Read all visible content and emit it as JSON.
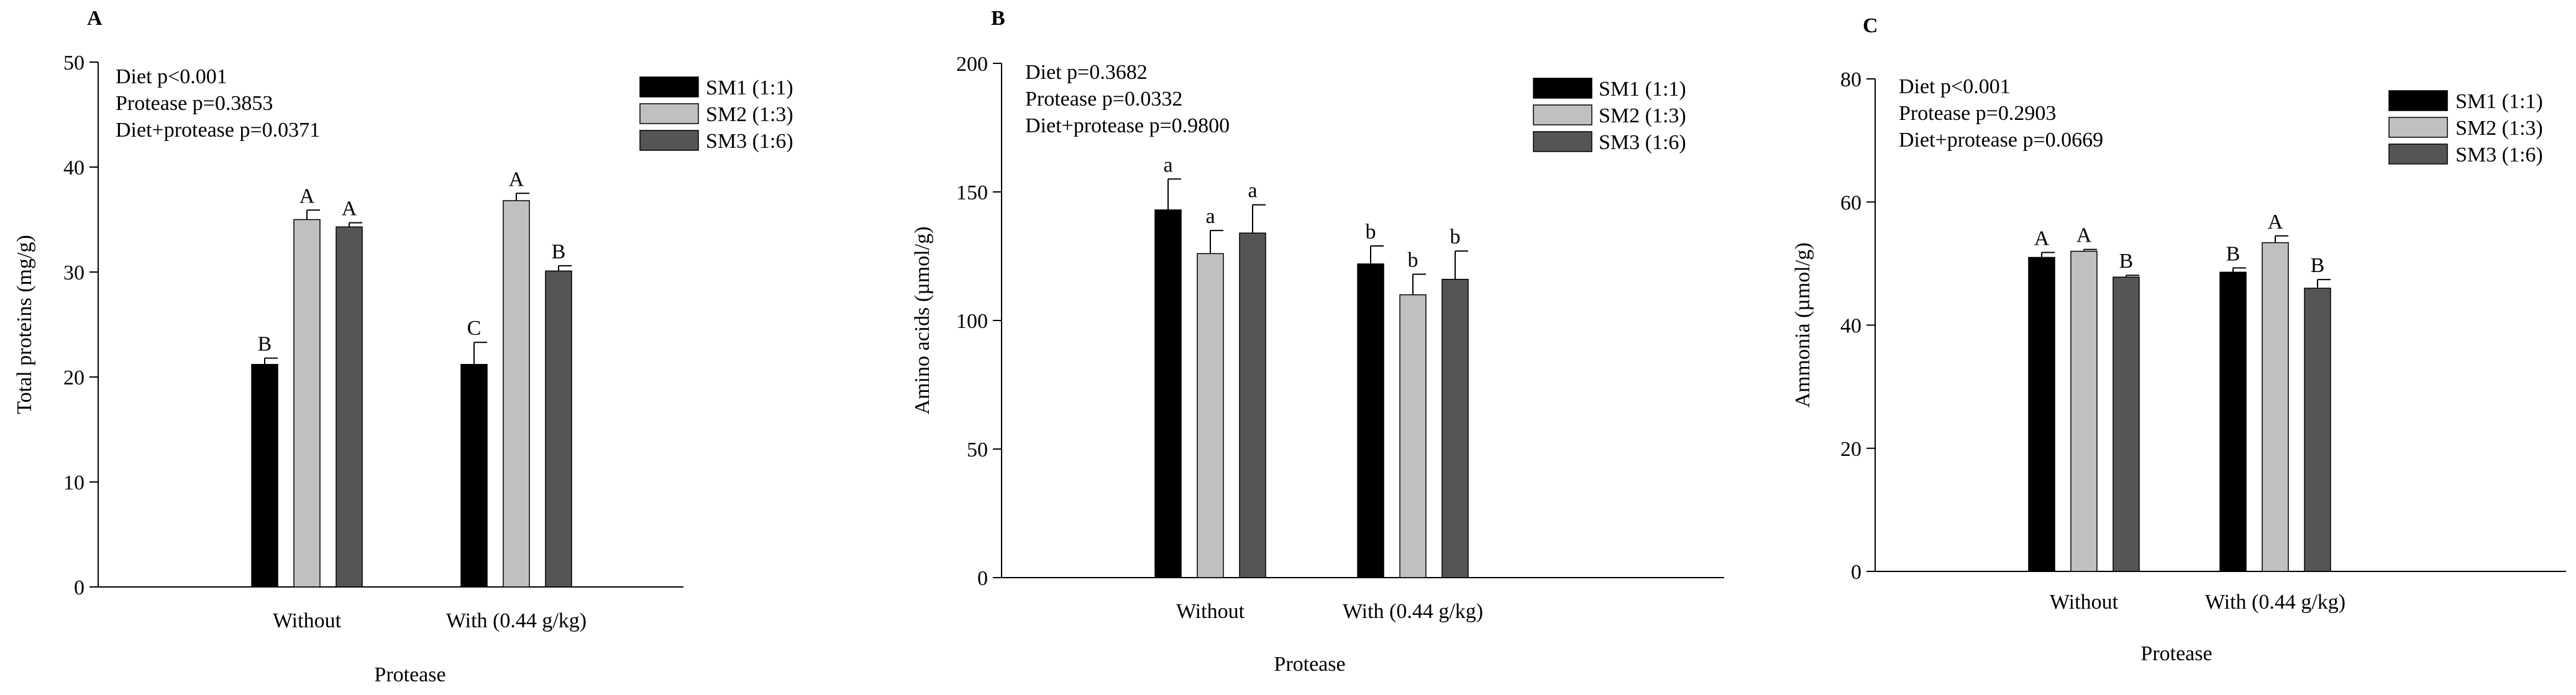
{
  "chart_data": [
    {
      "type": "bar",
      "panel": "A",
      "title": "",
      "xlabel": "Protease",
      "ylabel": "Total proteins (mg/g)",
      "categories": [
        "Without",
        "With (0.44 g/kg)"
      ],
      "ylim": [
        0,
        50
      ],
      "yticks": [
        0,
        10,
        20,
        30,
        40,
        50
      ],
      "grid": false,
      "legend_position": "top-right",
      "stats_text": [
        "Diet p<0.001",
        "Protease p=0.3853",
        "Diet+protease p=0.0371"
      ],
      "series": [
        {
          "name": "SM1 (1:1)",
          "color": "#000000",
          "values": [
            21.2,
            21.2
          ],
          "errors": [
            0.6,
            2.1
          ],
          "letters": [
            "B",
            "C"
          ]
        },
        {
          "name": "SM2 (1:3)",
          "color": "#c0c0c0",
          "values": [
            35.0,
            36.8
          ],
          "errors": [
            0.9,
            0.7
          ],
          "letters": [
            "A",
            "A"
          ]
        },
        {
          "name": "SM3 (1:6)",
          "color": "#555555",
          "values": [
            34.3,
            30.1
          ],
          "errors": [
            0.4,
            0.5
          ],
          "letters": [
            "A",
            "B"
          ]
        }
      ]
    },
    {
      "type": "bar",
      "panel": "B",
      "title": "",
      "xlabel": "Protease",
      "ylabel": "Amino acids (µmol/g)",
      "categories": [
        "Without",
        "With (0.44 g/kg)"
      ],
      "ylim": [
        0,
        200
      ],
      "yticks": [
        0,
        50,
        100,
        150,
        200
      ],
      "grid": false,
      "legend_position": "top-right",
      "stats_text": [
        "Diet p=0.3682",
        "Protease p=0.0332",
        "Diet+protease p=0.9800"
      ],
      "series": [
        {
          "name": "SM1 (1:1)",
          "color": "#000000",
          "values": [
            143,
            122
          ],
          "errors": [
            12,
            7
          ],
          "letters": [
            "a",
            "b"
          ]
        },
        {
          "name": "SM2 (1:3)",
          "color": "#c0c0c0",
          "values": [
            126,
            110
          ],
          "errors": [
            9,
            8
          ],
          "letters": [
            "a",
            "b"
          ]
        },
        {
          "name": "SM3 (1:6)",
          "color": "#555555",
          "values": [
            134,
            116
          ],
          "errors": [
            11,
            11
          ],
          "letters": [
            "a",
            "b"
          ]
        }
      ]
    },
    {
      "type": "bar",
      "panel": "C",
      "title": "",
      "xlabel": "Protease",
      "ylabel": "Ammonia (µmol/g)",
      "categories": [
        "Without",
        "With (0.44 g/kg)"
      ],
      "ylim": [
        0,
        80
      ],
      "yticks": [
        0,
        20,
        40,
        60,
        80
      ],
      "grid": false,
      "legend_position": "top-right",
      "stats_text": [
        "Diet p<0.001",
        "Protease p=0.2903",
        "Diet+protease p=0.0669"
      ],
      "series": [
        {
          "name": "SM1 (1:1)",
          "color": "#000000",
          "values": [
            51.0,
            48.6
          ],
          "errors": [
            0.8,
            0.7
          ],
          "letters": [
            "A",
            "B"
          ]
        },
        {
          "name": "SM2 (1:3)",
          "color": "#c0c0c0",
          "values": [
            52.0,
            53.4
          ],
          "errors": [
            0.3,
            1.1
          ],
          "letters": [
            "A",
            "A"
          ]
        },
        {
          "name": "SM3 (1:6)",
          "color": "#555555",
          "values": [
            47.8,
            46.0
          ],
          "errors": [
            0.3,
            1.4
          ],
          "letters": [
            "B",
            "B"
          ]
        }
      ]
    }
  ]
}
